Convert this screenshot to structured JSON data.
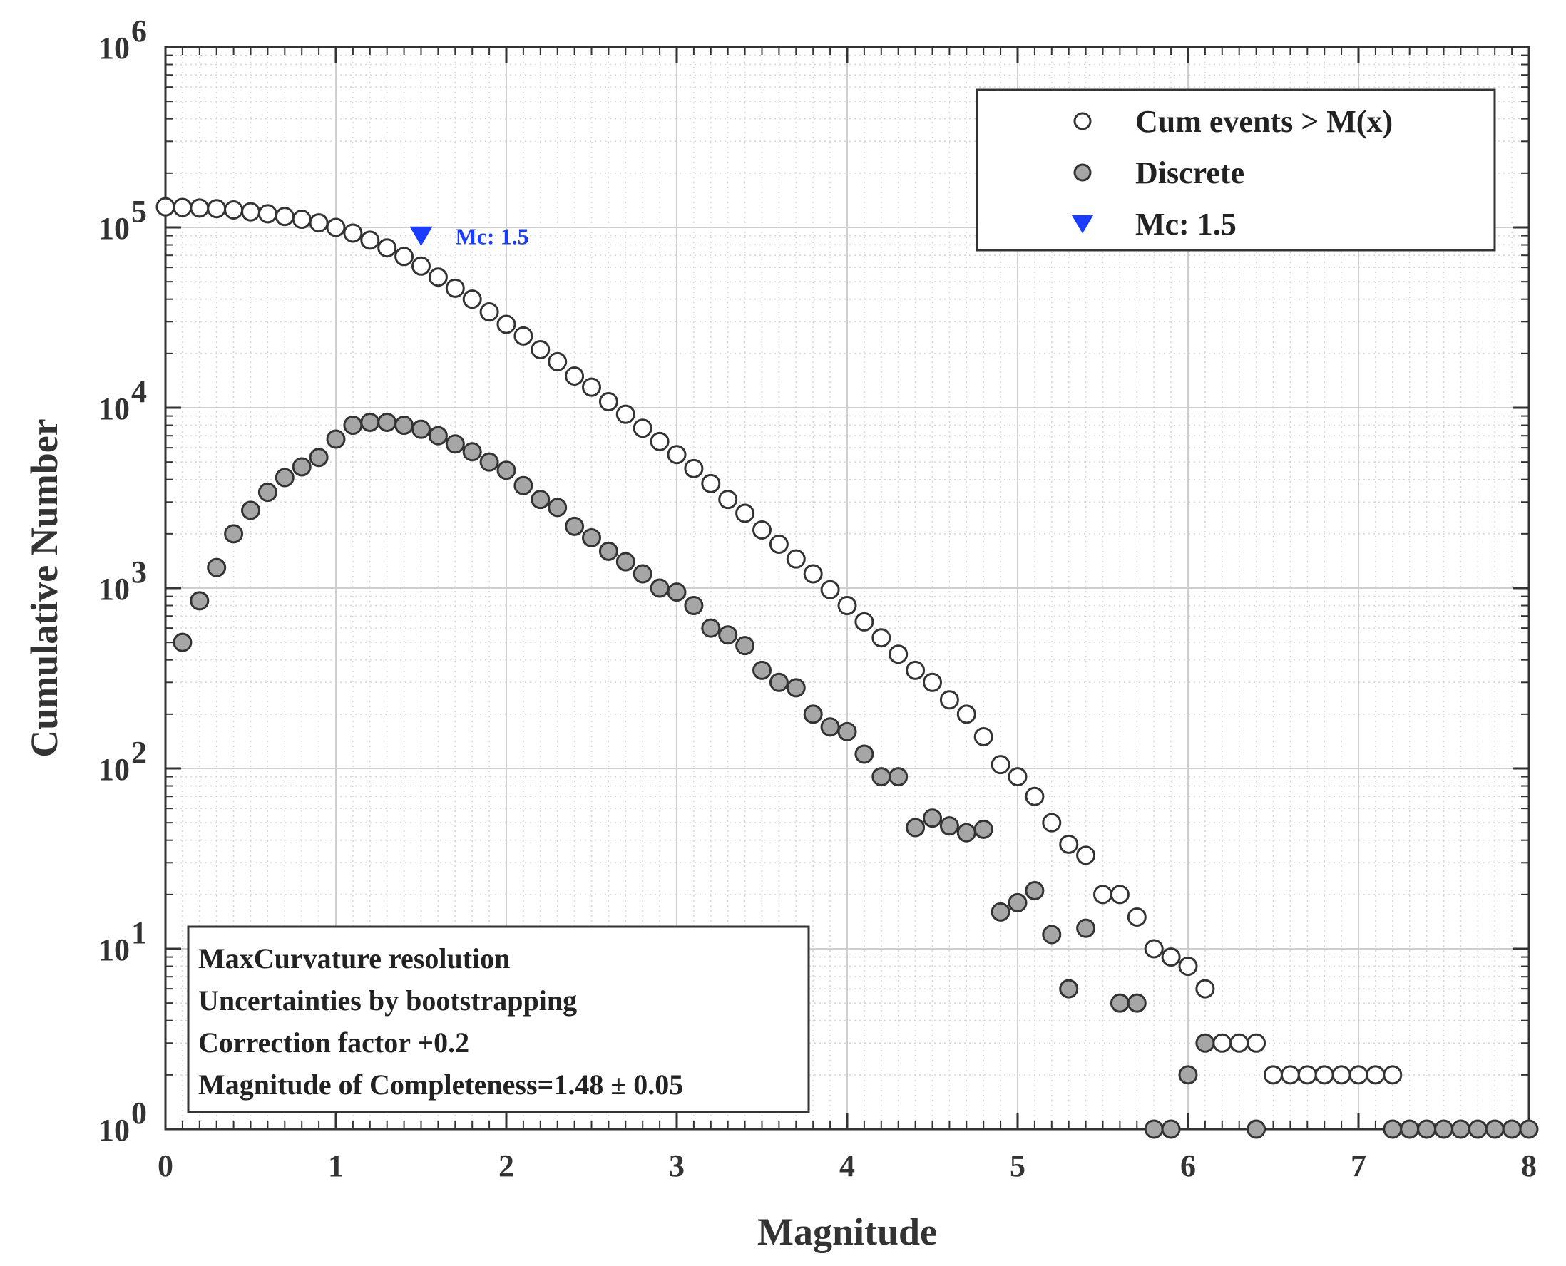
{
  "chart_data": {
    "type": "scatter",
    "title": "",
    "xlabel": "Magnitude",
    "ylabel": "Cumulative Number",
    "xlim": [
      0,
      8
    ],
    "ylim": [
      1,
      1000000
    ],
    "yscale": "log",
    "grid": true,
    "x_ticks": [
      {
        "value": 0,
        "label": "0"
      },
      {
        "value": 1,
        "label": "1"
      },
      {
        "value": 2,
        "label": "2"
      },
      {
        "value": 3,
        "label": "3"
      },
      {
        "value": 4,
        "label": "4"
      },
      {
        "value": 5,
        "label": "5"
      },
      {
        "value": 6,
        "label": "6"
      },
      {
        "value": 7,
        "label": "7"
      },
      {
        "value": 8,
        "label": "8"
      }
    ],
    "y_ticks": [
      {
        "value": 1,
        "base": "10",
        "exp": "0"
      },
      {
        "value": 10,
        "base": "10",
        "exp": "1"
      },
      {
        "value": 100,
        "base": "10",
        "exp": "2"
      },
      {
        "value": 1000,
        "base": "10",
        "exp": "3"
      },
      {
        "value": 10000,
        "base": "10",
        "exp": "4"
      },
      {
        "value": 100000,
        "base": "10",
        "exp": "5"
      },
      {
        "value": 1000000,
        "base": "10",
        "exp": "6"
      }
    ],
    "legend_position": "top-right",
    "legend": [
      {
        "label": "Cum events > M(x)",
        "marker": "open-circle"
      },
      {
        "label": "Discrete",
        "marker": "filled-circle"
      },
      {
        "label": "Mc: 1.5",
        "marker": "triangle-down"
      }
    ],
    "series": [
      {
        "name": "Cum events > M(x)",
        "x": [
          0.0,
          0.1,
          0.2,
          0.3,
          0.4,
          0.5,
          0.6,
          0.7,
          0.8,
          0.9,
          1.0,
          1.1,
          1.2,
          1.3,
          1.4,
          1.5,
          1.6,
          1.7,
          1.8,
          1.9,
          2.0,
          2.1,
          2.2,
          2.3,
          2.4,
          2.5,
          2.6,
          2.7,
          2.8,
          2.9,
          3.0,
          3.1,
          3.2,
          3.3,
          3.4,
          3.5,
          3.6,
          3.7,
          3.8,
          3.9,
          4.0,
          4.1,
          4.2,
          4.3,
          4.4,
          4.5,
          4.6,
          4.7,
          4.8,
          4.9,
          5.0,
          5.1,
          5.2,
          5.3,
          5.4,
          5.5,
          5.6,
          5.7,
          5.8,
          5.9,
          6.0,
          6.1,
          6.2,
          6.3,
          6.4,
          6.5,
          6.6,
          6.7,
          6.8,
          6.9,
          7.0,
          7.1,
          7.2
        ],
        "y": [
          130000,
          129000,
          128000,
          127000,
          125000,
          122000,
          119000,
          115000,
          111000,
          106000,
          100000,
          93000,
          85000,
          77000,
          69000,
          61000,
          53000,
          46000,
          40000,
          34000,
          29000,
          25000,
          21000,
          18000,
          15000,
          13000,
          10800,
          9200,
          7700,
          6500,
          5500,
          4600,
          3800,
          3100,
          2600,
          2100,
          1750,
          1450,
          1200,
          980,
          800,
          650,
          530,
          430,
          350,
          300,
          240,
          200,
          150,
          105,
          90,
          70,
          50,
          38,
          33,
          20,
          20,
          15,
          10,
          9,
          8,
          6,
          3,
          3,
          3,
          2,
          2,
          2,
          2,
          2,
          2,
          2,
          2
        ]
      },
      {
        "name": "Discrete",
        "x": [
          0.1,
          0.2,
          0.3,
          0.4,
          0.5,
          0.6,
          0.7,
          0.8,
          0.9,
          1.0,
          1.1,
          1.2,
          1.3,
          1.4,
          1.5,
          1.6,
          1.7,
          1.8,
          1.9,
          2.0,
          2.1,
          2.2,
          2.3,
          2.4,
          2.5,
          2.6,
          2.7,
          2.8,
          2.9,
          3.0,
          3.1,
          3.2,
          3.3,
          3.4,
          3.5,
          3.6,
          3.7,
          3.8,
          3.9,
          4.0,
          4.1,
          4.2,
          4.3,
          4.4,
          4.5,
          4.6,
          4.7,
          4.8,
          4.9,
          5.0,
          5.1,
          5.2,
          5.3,
          5.4,
          5.6,
          5.7,
          5.8,
          5.9,
          6.0,
          6.1,
          6.4,
          7.2,
          7.3,
          7.4,
          7.5,
          7.6,
          7.7,
          7.8,
          7.9,
          8.0
        ],
        "y": [
          500,
          850,
          1300,
          2000,
          2700,
          3400,
          4100,
          4700,
          5300,
          6700,
          8000,
          8300,
          8300,
          8000,
          7600,
          7000,
          6300,
          5700,
          5000,
          4500,
          3700,
          3100,
          2800,
          2200,
          1900,
          1600,
          1400,
          1200,
          1000,
          950,
          800,
          600,
          550,
          480,
          350,
          300,
          280,
          200,
          170,
          160,
          120,
          90,
          90,
          47,
          53,
          48,
          44,
          46,
          16,
          18,
          21,
          12,
          6,
          13,
          5,
          5,
          1,
          1,
          2,
          3,
          1,
          1,
          1,
          1,
          1,
          1,
          1,
          1,
          1,
          1
        ]
      }
    ],
    "annotation": {
      "x": 1.5,
      "y": 90000,
      "label": "Mc: 1.5",
      "marker": "triangle-down",
      "color": "#1a3cff"
    },
    "info_box": {
      "position": "bottom-left",
      "lines": [
        "MaxCurvature resolution",
        "Uncertainties by bootstrapping",
        "Correction factor +0.2",
        "Magnitude of Completeness=1.48 ± 0.05"
      ]
    },
    "colors": {
      "open_marker_fill": "#ffffff",
      "filled_marker_fill": "#a6a6a6",
      "marker_edge": "#333333",
      "grid_major": "#cfcfcf",
      "grid_minor": "#d6d6d6",
      "axis": "#333333",
      "mc_marker": "#1a3cff"
    }
  }
}
